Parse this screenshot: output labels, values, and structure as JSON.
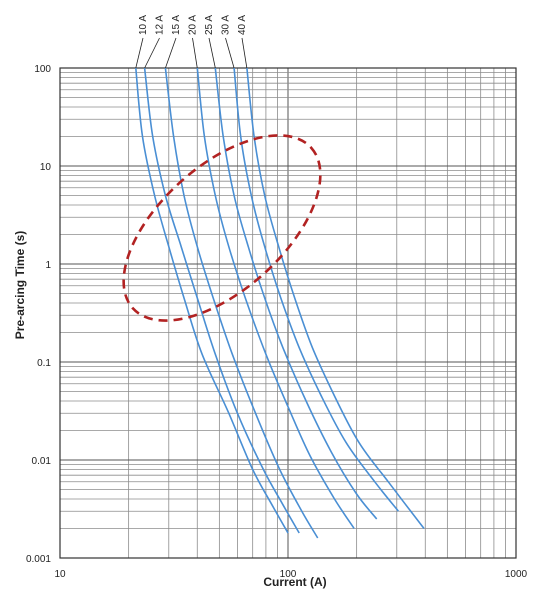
{
  "chart_data": {
    "type": "line",
    "xscale": "log",
    "yscale": "log",
    "xlim": [
      10,
      1000
    ],
    "ylim": [
      0.001,
      100
    ],
    "grid": true,
    "xlabel": "Current (A)",
    "ylabel": "Pre-arcing Time (s)",
    "x_ticks": [
      "10",
      "100",
      "1000"
    ],
    "y_ticks": [
      "0.001",
      "0.01",
      "0.1",
      "1",
      "10",
      "100"
    ],
    "series_color": "#4a8fd4",
    "annotation": {
      "shape": "dashed-ellipse",
      "color": "#b22222"
    },
    "series": [
      {
        "name": "10 A",
        "points": [
          [
            21.5,
            100
          ],
          [
            23,
            20
          ],
          [
            26,
            5
          ],
          [
            30,
            1.5
          ],
          [
            35,
            0.45
          ],
          [
            42,
            0.12
          ],
          [
            55,
            0.03
          ],
          [
            70,
            0.008
          ],
          [
            85,
            0.0035
          ],
          [
            100,
            0.0018
          ]
        ]
      },
      {
        "name": "12 A",
        "points": [
          [
            23.5,
            100
          ],
          [
            25.5,
            20
          ],
          [
            29,
            5
          ],
          [
            34,
            1.5
          ],
          [
            40,
            0.45
          ],
          [
            48,
            0.12
          ],
          [
            60,
            0.03
          ],
          [
            78,
            0.008
          ],
          [
            95,
            0.0035
          ],
          [
            112,
            0.0018
          ]
        ]
      },
      {
        "name": "15 A",
        "points": [
          [
            29,
            100
          ],
          [
            31.5,
            20
          ],
          [
            35,
            5
          ],
          [
            40,
            1.5
          ],
          [
            47,
            0.45
          ],
          [
            57,
            0.12
          ],
          [
            72,
            0.03
          ],
          [
            92,
            0.008
          ],
          [
            115,
            0.003
          ],
          [
            135,
            0.0016
          ]
        ]
      },
      {
        "name": "20 A",
        "points": [
          [
            40,
            100
          ],
          [
            43,
            20
          ],
          [
            48,
            5
          ],
          [
            55,
            1.5
          ],
          [
            65,
            0.45
          ],
          [
            80,
            0.12
          ],
          [
            100,
            0.035
          ],
          [
            125,
            0.011
          ],
          [
            160,
            0.004
          ],
          [
            195,
            0.002
          ]
        ]
      },
      {
        "name": "25 A",
        "points": [
          [
            48,
            100
          ],
          [
            52,
            20
          ],
          [
            58,
            5
          ],
          [
            67,
            1.5
          ],
          [
            79,
            0.45
          ],
          [
            95,
            0.14
          ],
          [
            120,
            0.04
          ],
          [
            155,
            0.012
          ],
          [
            200,
            0.0045
          ],
          [
            245,
            0.0025
          ]
        ]
      },
      {
        "name": "30 A",
        "points": [
          [
            58,
            100
          ],
          [
            62,
            20
          ],
          [
            69,
            5
          ],
          [
            79,
            1.5
          ],
          [
            93,
            0.45
          ],
          [
            112,
            0.14
          ],
          [
            140,
            0.045
          ],
          [
            180,
            0.015
          ],
          [
            240,
            0.006
          ],
          [
            305,
            0.003
          ]
        ]
      },
      {
        "name": "40 A",
        "points": [
          [
            66,
            100
          ],
          [
            71,
            20
          ],
          [
            79,
            5
          ],
          [
            91,
            1.5
          ],
          [
            107,
            0.45
          ],
          [
            128,
            0.14
          ],
          [
            160,
            0.045
          ],
          [
            205,
            0.015
          ],
          [
            275,
            0.006
          ],
          [
            395,
            0.002
          ]
        ]
      }
    ]
  }
}
